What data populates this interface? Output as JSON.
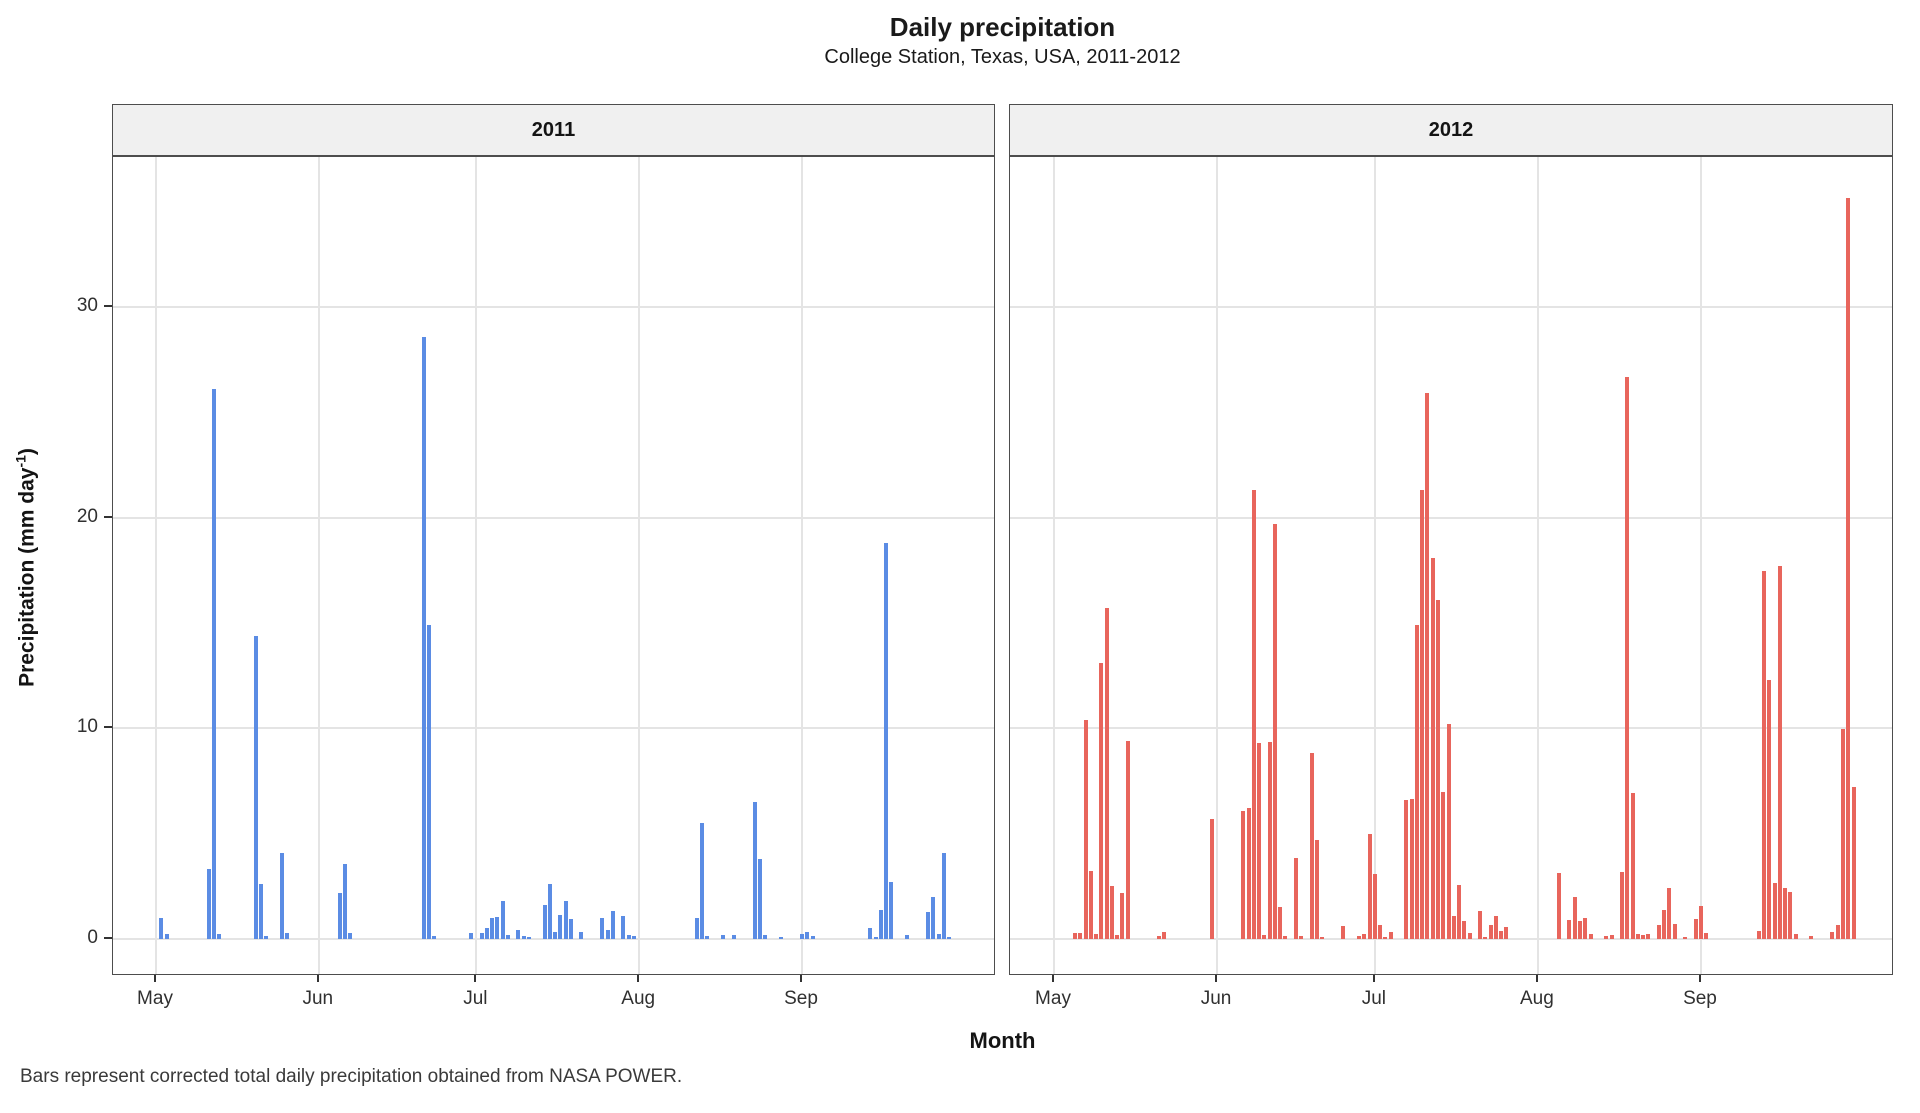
{
  "caption": "Bars represent corrected total daily precipitation obtained from NASA POWER.",
  "chart_data": {
    "type": "bar",
    "title": "Daily precipitation",
    "subtitle": "College Station, Texas, USA, 2011-2012",
    "xlabel": "Month",
    "ylabel_base": "Precipitation (mm day",
    "ylabel_sup": "-1",
    "ylabel_end": ")",
    "x_unit": "day offset from May 1",
    "x_tick_labels": [
      "May",
      "Jun",
      "Jul",
      "Aug",
      "Sep"
    ],
    "month_tick_days": [
      0,
      31,
      61,
      92,
      123
    ],
    "y_ticks": [
      0,
      10,
      20,
      30
    ],
    "ylim": [
      0,
      36
    ],
    "grid": "major-only",
    "legend": "none",
    "facets": [
      {
        "label": "2011",
        "color": "#5b8ce4",
        "bars": [
          [
            1,
            1.0
          ],
          [
            2,
            0.25
          ],
          [
            10,
            3.3
          ],
          [
            11,
            26.1
          ],
          [
            12,
            0.25
          ],
          [
            19,
            14.4
          ],
          [
            20,
            2.6
          ],
          [
            21,
            0.15
          ],
          [
            24,
            4.1
          ],
          [
            25,
            0.3
          ],
          [
            35,
            2.2
          ],
          [
            36,
            3.55
          ],
          [
            37,
            0.3
          ],
          [
            51,
            28.6
          ],
          [
            52,
            14.9
          ],
          [
            53,
            0.15
          ],
          [
            60,
            0.3
          ],
          [
            62,
            0.3
          ],
          [
            63,
            0.5
          ],
          [
            64,
            1.0
          ],
          [
            65,
            1.05
          ],
          [
            66,
            1.8
          ],
          [
            67,
            0.2
          ],
          [
            69,
            0.45
          ],
          [
            70,
            0.15
          ],
          [
            71,
            0.1
          ],
          [
            74,
            1.6
          ],
          [
            75,
            2.6
          ],
          [
            76,
            0.35
          ],
          [
            77,
            1.15
          ],
          [
            78,
            1.8
          ],
          [
            79,
            0.95
          ],
          [
            81,
            0.35
          ],
          [
            85,
            1.0
          ],
          [
            86,
            0.45
          ],
          [
            87,
            1.35
          ],
          [
            89,
            1.1
          ],
          [
            90,
            0.2
          ],
          [
            91,
            0.15
          ],
          [
            103,
            1.0
          ],
          [
            104,
            5.5
          ],
          [
            105,
            0.15
          ],
          [
            108,
            0.2
          ],
          [
            110,
            0.2
          ],
          [
            114,
            6.5
          ],
          [
            115,
            3.8
          ],
          [
            116,
            0.2
          ],
          [
            119,
            0.1
          ],
          [
            123,
            0.25
          ],
          [
            124,
            0.35
          ],
          [
            125,
            0.15
          ],
          [
            136,
            0.5
          ],
          [
            137,
            0.1
          ],
          [
            138,
            1.4
          ],
          [
            139,
            18.8
          ],
          [
            140,
            2.7
          ],
          [
            143,
            0.2
          ],
          [
            147,
            1.3
          ],
          [
            148,
            2.0
          ],
          [
            149,
            0.25
          ],
          [
            150,
            4.1
          ],
          [
            151,
            0.1
          ]
        ]
      },
      {
        "label": "2012",
        "color": "#e8655c",
        "bars": [
          [
            4,
            0.27
          ],
          [
            5,
            0.27
          ],
          [
            6,
            10.4
          ],
          [
            7,
            3.25
          ],
          [
            8,
            0.22
          ],
          [
            9,
            13.1
          ],
          [
            10,
            15.7
          ],
          [
            11,
            2.5
          ],
          [
            12,
            0.2
          ],
          [
            13,
            2.2
          ],
          [
            14,
            9.4
          ],
          [
            20,
            0.15
          ],
          [
            21,
            0.35
          ],
          [
            30,
            5.7
          ],
          [
            36,
            6.1
          ],
          [
            37,
            6.2
          ],
          [
            38,
            21.3
          ],
          [
            39,
            9.3
          ],
          [
            40,
            0.2
          ],
          [
            41,
            9.35
          ],
          [
            42,
            19.7
          ],
          [
            43,
            1.5
          ],
          [
            44,
            0.15
          ],
          [
            46,
            3.85
          ],
          [
            47,
            0.15
          ],
          [
            49,
            8.85
          ],
          [
            50,
            4.7
          ],
          [
            51,
            0.1
          ],
          [
            55,
            0.6
          ],
          [
            58,
            0.15
          ],
          [
            59,
            0.25
          ],
          [
            60,
            5.0
          ],
          [
            61,
            3.1
          ],
          [
            62,
            0.65
          ],
          [
            63,
            0.1
          ],
          [
            64,
            0.35
          ],
          [
            67,
            6.6
          ],
          [
            68,
            6.65
          ],
          [
            69,
            14.9
          ],
          [
            70,
            21.3
          ],
          [
            71,
            25.9
          ],
          [
            72,
            18.1
          ],
          [
            73,
            16.1
          ],
          [
            74,
            7.0
          ],
          [
            75,
            10.2
          ],
          [
            76,
            1.1
          ],
          [
            77,
            2.55
          ],
          [
            78,
            0.85
          ],
          [
            79,
            0.3
          ],
          [
            81,
            1.35
          ],
          [
            82,
            0.1
          ],
          [
            83,
            0.65
          ],
          [
            84,
            1.1
          ],
          [
            85,
            0.4
          ],
          [
            86,
            0.55
          ],
          [
            96,
            3.15
          ],
          [
            98,
            0.9
          ],
          [
            99,
            2.0
          ],
          [
            100,
            0.85
          ],
          [
            101,
            1.0
          ],
          [
            102,
            0.25
          ],
          [
            105,
            0.15
          ],
          [
            106,
            0.2
          ],
          [
            108,
            3.2
          ],
          [
            109,
            26.7
          ],
          [
            110,
            6.95
          ],
          [
            111,
            0.25
          ],
          [
            112,
            0.2
          ],
          [
            113,
            0.25
          ],
          [
            115,
            0.65
          ],
          [
            116,
            1.4
          ],
          [
            117,
            2.4
          ],
          [
            118,
            0.7
          ],
          [
            120,
            0.1
          ],
          [
            122,
            0.95
          ],
          [
            123,
            1.55
          ],
          [
            124,
            0.3
          ],
          [
            134,
            0.4
          ],
          [
            135,
            17.45
          ],
          [
            136,
            12.3
          ],
          [
            137,
            2.65
          ],
          [
            138,
            17.7
          ],
          [
            139,
            2.4
          ],
          [
            140,
            2.25
          ],
          [
            141,
            0.25
          ],
          [
            144,
            0.15
          ],
          [
            148,
            0.33
          ],
          [
            149,
            0.65
          ],
          [
            150,
            9.95
          ],
          [
            151,
            35.2
          ],
          [
            152,
            7.2
          ]
        ]
      }
    ]
  }
}
